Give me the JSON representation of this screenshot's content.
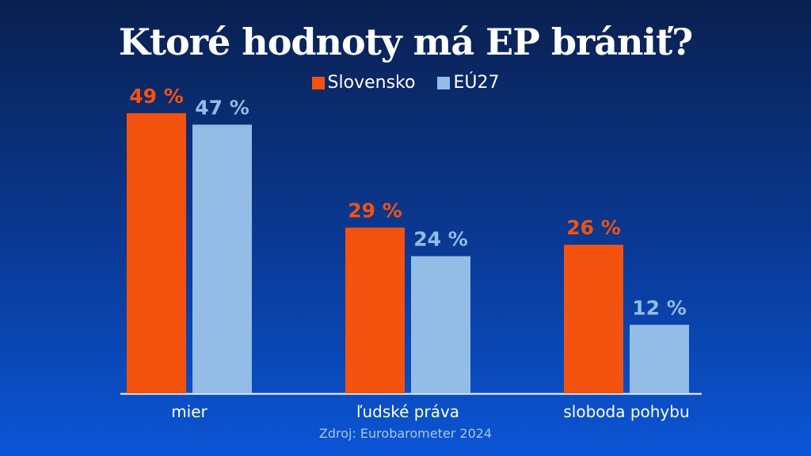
{
  "chart_data": {
    "type": "bar",
    "title": "Ktoré hodnoty má EP brániť?",
    "categories": [
      "mier",
      "ľudské práva",
      "sloboda pohybu"
    ],
    "series": [
      {
        "name": "Slovensko",
        "values": [
          49,
          29,
          26
        ],
        "labels": [
          "49 %",
          "29 %",
          "26 %"
        ],
        "color": "#f4520f",
        "label_color": "#f4520f"
      },
      {
        "name": "EÚ27",
        "values": [
          47,
          24,
          12
        ],
        "labels": [
          "47 %",
          "24 %",
          "12 %"
        ],
        "color": "#93bde6",
        "label_color": "#93bde6"
      }
    ],
    "ylim": [
      0,
      49
    ],
    "grid": false,
    "legend_position": "top-center",
    "source": "Zdroj: Eurobarometer 2024"
  }
}
